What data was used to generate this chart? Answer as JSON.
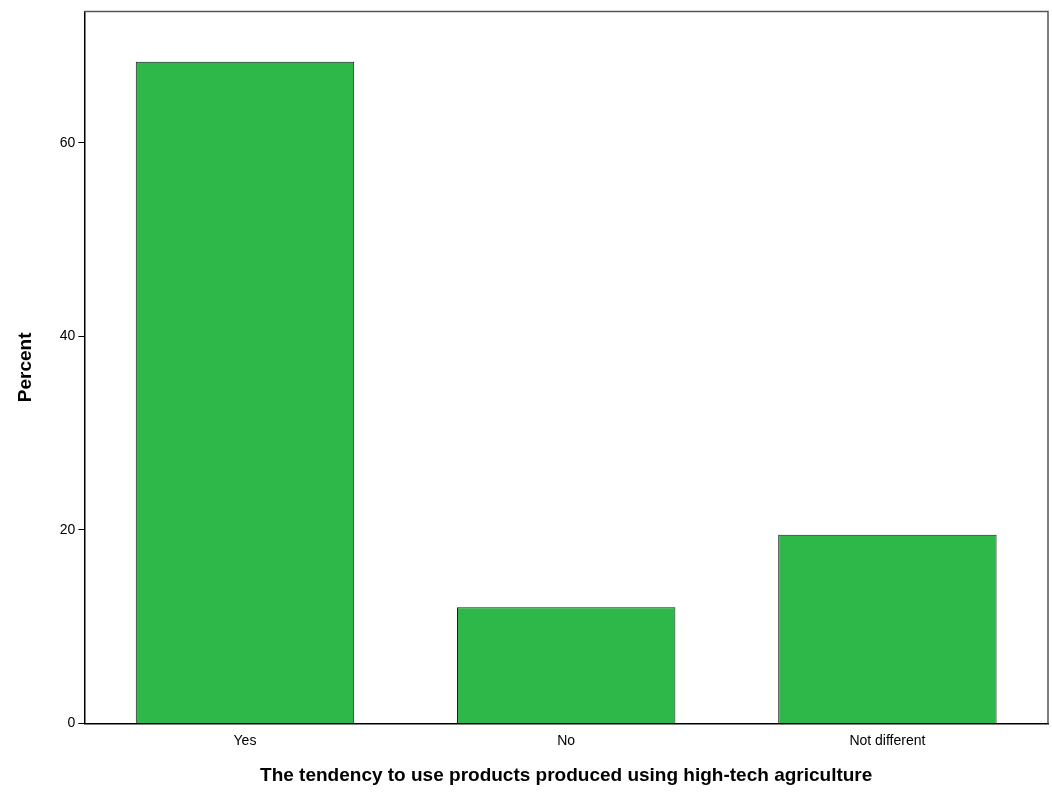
{
  "chart_data": {
    "type": "bar",
    "xlabel": "The tendency to use products produced using high-tech agriculture",
    "ylabel": "Percent",
    "categories": [
      "Yes",
      "No",
      "Not different"
    ],
    "values": [
      68.4,
      12.0,
      19.5
    ],
    "color": "#2eb84a",
    "ylim": [
      0,
      73.6
    ],
    "yticks": [
      0,
      20,
      40,
      60
    ],
    "grid": false,
    "legend": false
  }
}
